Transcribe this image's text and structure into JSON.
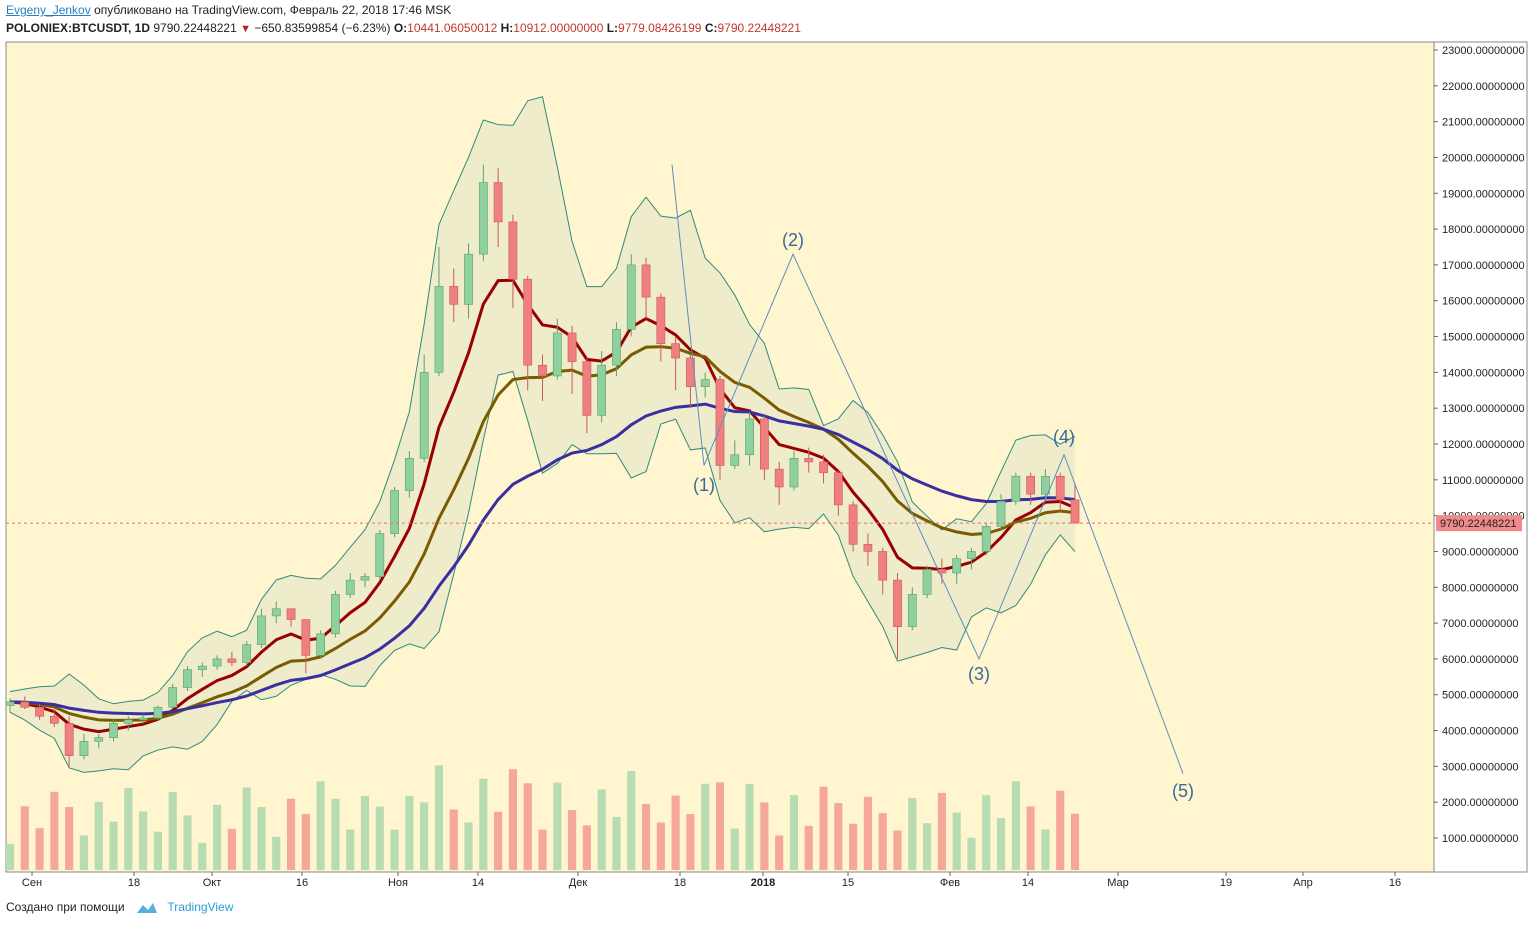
{
  "header": {
    "author": "Evgeny_Jenkov",
    "published": "опубликовано на TradingView.com, Февраль 22, 2018 17:46 MSK",
    "symbol": "POLONIEX:BTCUSDT, 1D",
    "price": "9790.22448221",
    "change": "−650.83599854 (−6.23%)",
    "o_label": "O:",
    "o": "10441.06050012",
    "h_label": "H:",
    "h": "10912.00000000",
    "l_label": "L:",
    "l": "9779.08426199",
    "c_label": "C:",
    "c": "9790.22448221"
  },
  "footer": {
    "created": "Создано при помощи",
    "brand": "TradingView"
  },
  "colors": {
    "background": "#fff5cf",
    "up": "#8fd19e",
    "down": "#f08080",
    "ema_short": "#9b0000",
    "ema_mid": "#7a5c00",
    "ema_long": "#3a2fa0",
    "band": "#2e8b7a",
    "band_fill": "#efeccb",
    "vol_up": "#b8dcb1",
    "vol_down": "#f5a79a",
    "vol_ma": "#f4a460",
    "wave": "#5b8fbf",
    "price_line": "#e07070"
  },
  "chart_data": {
    "type": "candlestick",
    "ylim": [
      0,
      23000
    ],
    "yticks": [
      "23000.00000000",
      "22000.00000000",
      "21000.00000000",
      "20000.00000000",
      "19000.00000000",
      "18000.00000000",
      "17000.00000000",
      "16000.00000000",
      "15000.00000000",
      "14000.00000000",
      "13000.00000000",
      "12000.00000000",
      "11000.00000000",
      "10000.00000000",
      "9000.00000000",
      "8000.00000000",
      "7000.00000000",
      "6000.00000000",
      "5000.00000000",
      "4000.00000000",
      "3000.00000000",
      "2000.00000000",
      "1000.00000000"
    ],
    "xticks": [
      "Сен",
      "18",
      "Окт",
      "16",
      "Ноя",
      "14",
      "Дек",
      "18",
      "2018",
      "15",
      "Фев",
      "14",
      "Мар",
      "19",
      "Апр",
      "16"
    ],
    "last_price_label": "9790.22448221",
    "ohlc_sample": [
      [
        4700,
        4900,
        4500,
        4800
      ],
      [
        4800,
        4950,
        4600,
        4650
      ],
      [
        4650,
        4750,
        4300,
        4400
      ],
      [
        4400,
        4600,
        4100,
        4200
      ],
      [
        4200,
        4400,
        3000,
        3300
      ],
      [
        3300,
        3900,
        3200,
        3700
      ],
      [
        3700,
        3900,
        3500,
        3800
      ],
      [
        3800,
        4300,
        3700,
        4200
      ],
      [
        4200,
        4400,
        4000,
        4300
      ],
      [
        4300,
        4450,
        4200,
        4350
      ],
      [
        4350,
        4700,
        4300,
        4650
      ],
      [
        4650,
        5300,
        4600,
        5200
      ],
      [
        5200,
        5800,
        5100,
        5700
      ],
      [
        5700,
        5900,
        5500,
        5800
      ],
      [
        5800,
        6100,
        5700,
        6000
      ],
      [
        6000,
        6200,
        5800,
        5900
      ],
      [
        5900,
        6500,
        5800,
        6400
      ],
      [
        6400,
        7400,
        6300,
        7200
      ],
      [
        7200,
        7600,
        7000,
        7400
      ],
      [
        7400,
        7300,
        6900,
        7100
      ],
      [
        7100,
        7000,
        5600,
        6100
      ],
      [
        6100,
        6800,
        6000,
        6700
      ],
      [
        6700,
        7900,
        6600,
        7800
      ],
      [
        7800,
        8400,
        7700,
        8200
      ],
      [
        8200,
        8400,
        8000,
        8300
      ],
      [
        8300,
        9600,
        8200,
        9500
      ],
      [
        9500,
        10800,
        9400,
        10700
      ],
      [
        10700,
        11800,
        10500,
        11600
      ],
      [
        11600,
        14500,
        11500,
        14000
      ],
      [
        14000,
        17500,
        13900,
        16400
      ],
      [
        16400,
        16900,
        15400,
        15900
      ],
      [
        15900,
        17600,
        15500,
        17300
      ],
      [
        17300,
        19800,
        17100,
        19300
      ],
      [
        19300,
        19700,
        17500,
        18200
      ],
      [
        18200,
        18400,
        15800,
        16600
      ],
      [
        16600,
        16700,
        13500,
        14200
      ],
      [
        14200,
        14500,
        13200,
        13900
      ],
      [
        13900,
        15500,
        13800,
        15100
      ],
      [
        15100,
        15300,
        13400,
        14300
      ],
      [
        14300,
        14400,
        12300,
        12800
      ],
      [
        12800,
        14600,
        12600,
        14200
      ],
      [
        14200,
        15400,
        13900,
        15200
      ],
      [
        15200,
        17300,
        15000,
        17000
      ],
      [
        17000,
        17200,
        15500,
        16100
      ],
      [
        16100,
        16200,
        14300,
        14800
      ],
      [
        14800,
        15000,
        13500,
        14400
      ],
      [
        14400,
        14500,
        13000,
        13600
      ],
      [
        13600,
        14000,
        13300,
        13800
      ],
      [
        13800,
        13900,
        11000,
        11400
      ],
      [
        11400,
        12100,
        11300,
        11700
      ],
      [
        11700,
        12900,
        11400,
        12700
      ],
      [
        12700,
        12800,
        11000,
        11300
      ],
      [
        11300,
        11500,
        10300,
        10800
      ],
      [
        10800,
        11800,
        10700,
        11600
      ],
      [
        11600,
        11900,
        11200,
        11500
      ],
      [
        11500,
        11700,
        10900,
        11200
      ],
      [
        11200,
        11300,
        10000,
        10300
      ],
      [
        10300,
        10400,
        9000,
        9200
      ],
      [
        9200,
        9500,
        8600,
        9000
      ],
      [
        9000,
        9100,
        7800,
        8200
      ],
      [
        8200,
        8400,
        6000,
        6900
      ],
      [
        6900,
        8000,
        6800,
        7800
      ],
      [
        7800,
        8600,
        7700,
        8500
      ],
      [
        8500,
        8800,
        8100,
        8400
      ],
      [
        8400,
        8900,
        8100,
        8800
      ],
      [
        8800,
        9100,
        8500,
        9000
      ],
      [
        9000,
        9800,
        8900,
        9700
      ],
      [
        9700,
        10600,
        9600,
        10400
      ],
      [
        10400,
        11200,
        10300,
        11100
      ],
      [
        11100,
        11200,
        10300,
        10600
      ],
      [
        10600,
        11300,
        10400,
        11100
      ],
      [
        11100,
        11200,
        10100,
        10441
      ],
      [
        10441,
        10912,
        9779,
        9790
      ]
    ],
    "wave_labels": [
      "(1)",
      "(2)",
      "(3)",
      "(4)",
      "(5)"
    ],
    "wave_points": [
      [
        19800,
        0
      ],
      [
        11400,
        0
      ],
      [
        17300,
        0
      ],
      [
        6000,
        0
      ],
      [
        11700,
        0
      ],
      [
        2800,
        0
      ]
    ]
  }
}
